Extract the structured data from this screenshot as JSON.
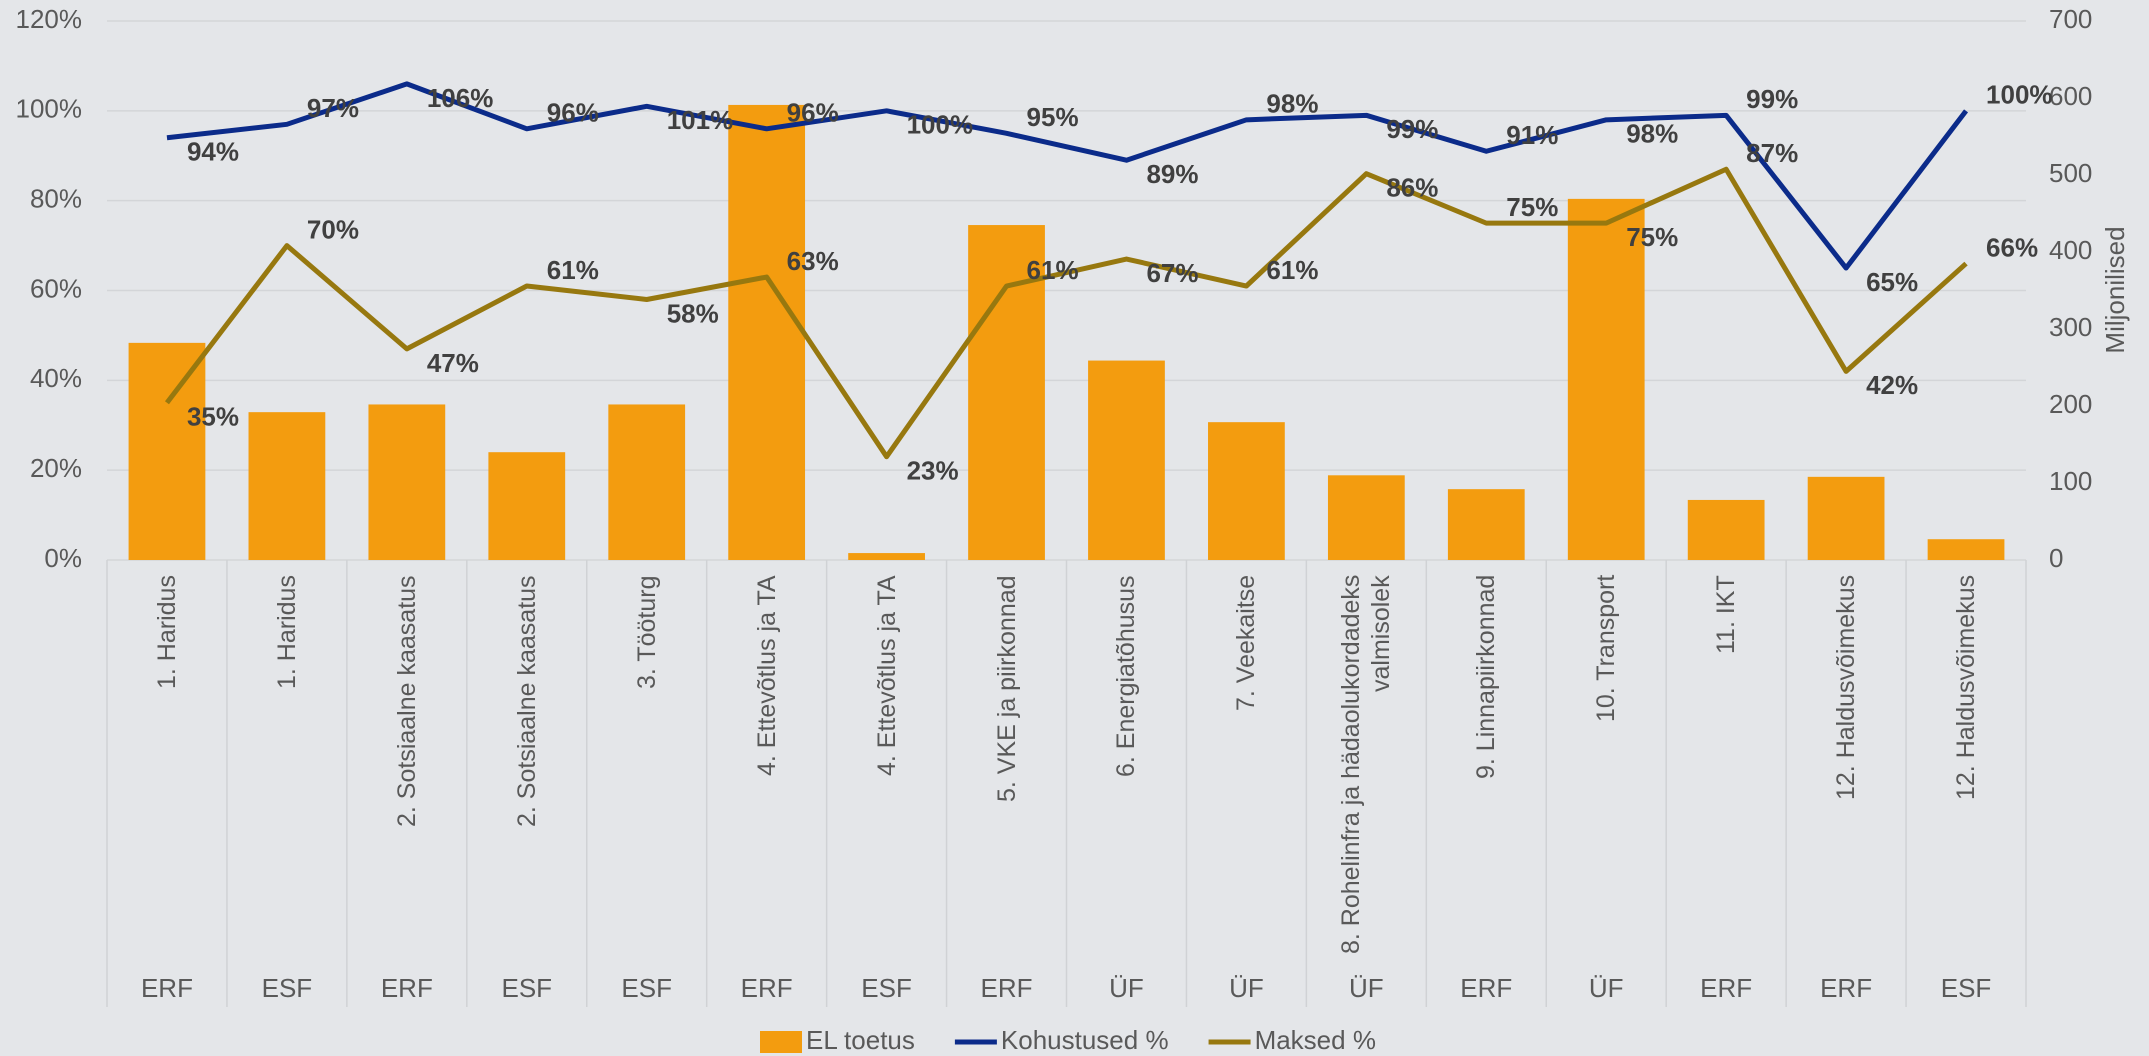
{
  "chart_data": {
    "type": "bar-line",
    "y2label": "Miljonilised",
    "categories": [
      "1. Haridus",
      "1. Haridus",
      "2. Sotsiaalne kaasatus",
      "2. Sotsiaalne kaasatus",
      "3. Tööturg",
      "4. Ettevõtlus ja TA",
      "4. Ettevõtlus ja TA",
      "5. VKE ja piirkonnad",
      "6. Energiatõhusus",
      "7. Veekaitse",
      "8. Rohelinfra ja hädaolukordadeks valmisolek",
      "9. Linnapiirkonnad",
      "10. Transport",
      "11. IKT",
      "12. Haldusvõimekus",
      "12. Haldusvõimekus"
    ],
    "funds": [
      "ERF",
      "ESF",
      "ERF",
      "ESF",
      "ESF",
      "ERF",
      "ESF",
      "ERF",
      "ÜF",
      "ÜF",
      "ÜF",
      "ERF",
      "ÜF",
      "ERF",
      "ERF",
      "ESF"
    ],
    "series": [
      {
        "name": "EL toetus",
        "type": "bar",
        "axis": "y2",
        "color": "#f39c0f",
        "values": [
          282,
          192,
          202,
          140,
          202,
          591,
          9,
          435,
          259,
          179,
          110,
          92,
          469,
          78,
          108,
          27
        ]
      },
      {
        "name": "Kohustused %",
        "type": "line",
        "color": "#0b2b8a",
        "values": [
          94,
          97,
          106,
          96,
          101,
          96,
          100,
          95,
          89,
          98,
          99,
          91,
          98,
          99,
          65,
          100
        ],
        "value_labels": [
          "94%",
          "97%",
          "106%",
          "96%",
          "101%",
          "96%",
          "100%",
          "95%",
          "89%",
          "98%",
          "99%",
          "91%",
          "98%",
          "99%",
          "65%",
          "100%"
        ]
      },
      {
        "name": "Maksed %",
        "type": "line",
        "color": "#97780f",
        "values": [
          35,
          70,
          47,
          61,
          58,
          63,
          23,
          61,
          67,
          61,
          86,
          75,
          75,
          87,
          42,
          66
        ],
        "value_labels": [
          "35%",
          "70%",
          "47%",
          "61%",
          "58%",
          "63%",
          "23%",
          "61%",
          "67%",
          "61%",
          "86%",
          "75%",
          "75%",
          "87%",
          "42%",
          "66%"
        ]
      }
    ],
    "ylim": [
      0,
      120
    ],
    "yticks": [
      {
        "value": 0,
        "label": "0%"
      },
      {
        "value": 20,
        "label": "20%"
      },
      {
        "value": 40,
        "label": "40%"
      },
      {
        "value": 60,
        "label": "60%"
      },
      {
        "value": 80,
        "label": "80%"
      },
      {
        "value": 100,
        "label": "100%"
      },
      {
        "value": 120,
        "label": "120%"
      }
    ],
    "y2lim": [
      0,
      700
    ],
    "y2ticks": [
      0,
      100,
      200,
      300,
      400,
      500,
      600,
      700
    ],
    "grid": true,
    "legend": "bottom"
  }
}
